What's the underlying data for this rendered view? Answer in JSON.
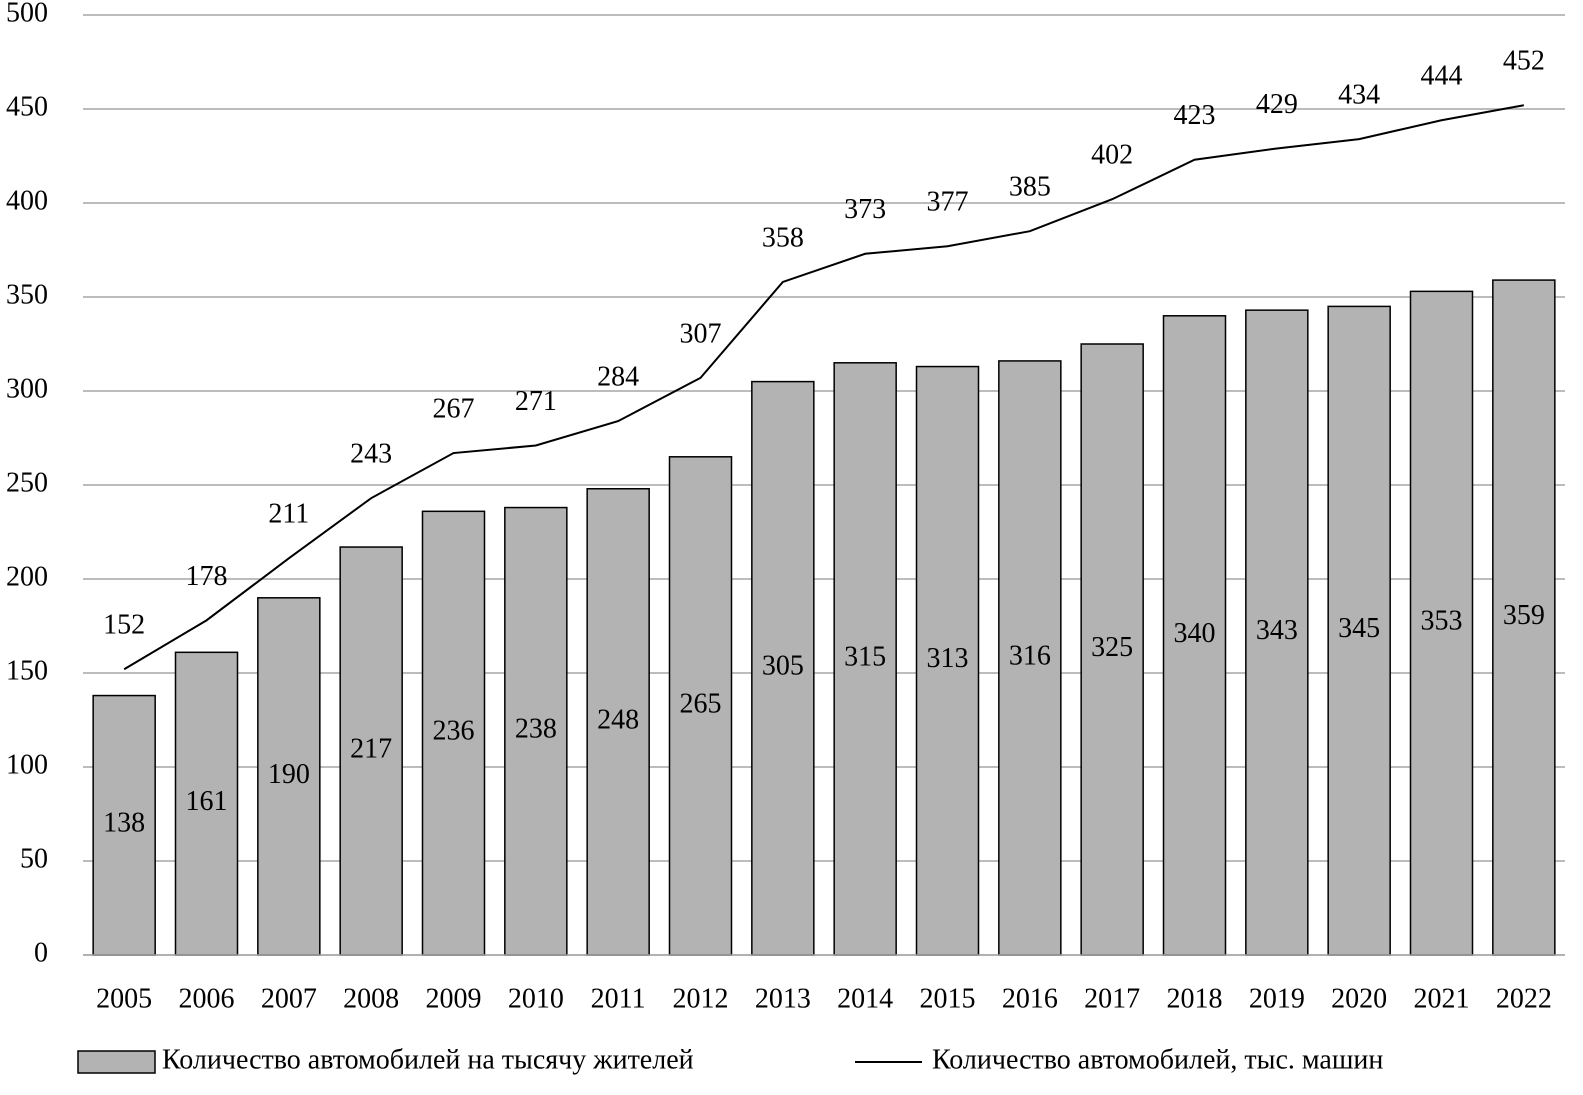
{
  "chart_data": {
    "type": "bar",
    "categories": [
      "2005",
      "2006",
      "2007",
      "2008",
      "2009",
      "2010",
      "2011",
      "2012",
      "2013",
      "2014",
      "2015",
      "2016",
      "2017",
      "2018",
      "2019",
      "2020",
      "2021",
      "2022"
    ],
    "series": [
      {
        "name": "Количество автомобилей на тысячу жителей",
        "type": "bar",
        "color": "#b3b3b3",
        "values": [
          138,
          161,
          190,
          217,
          236,
          238,
          248,
          265,
          305,
          315,
          313,
          316,
          325,
          340,
          343,
          345,
          353,
          359
        ]
      },
      {
        "name": "Количество автомобилей, тыс. машин",
        "type": "line",
        "color": "#000000",
        "values": [
          152,
          178,
          211,
          243,
          267,
          271,
          284,
          307,
          358,
          373,
          377,
          385,
          402,
          423,
          429,
          434,
          444,
          452
        ]
      }
    ],
    "ylim": [
      0,
      500
    ],
    "yticks": [
      0,
      50,
      100,
      150,
      200,
      250,
      300,
      350,
      400,
      450,
      500
    ],
    "grid": true,
    "legend": "bottom"
  }
}
